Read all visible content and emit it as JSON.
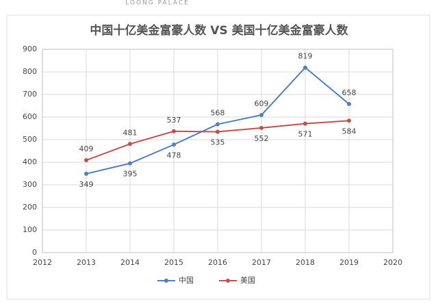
{
  "chart_data": {
    "type": "line",
    "title": "中国十亿美金富豪人数 VS 美国十亿美金富豪人数",
    "annotations": [
      "LOONG  PALACE"
    ],
    "x": [
      2013,
      2014,
      2015,
      2016,
      2017,
      2018,
      2019
    ],
    "series": [
      {
        "name": "中国",
        "color": "#4f7fbc",
        "values": [
          349,
          395,
          478,
          568,
          609,
          819,
          658
        ]
      },
      {
        "name": "美国",
        "color": "#c0504d",
        "values": [
          409,
          481,
          537,
          535,
          552,
          571,
          584
        ]
      }
    ],
    "xlim": [
      2012,
      2020
    ],
    "xticks": [
      2012,
      2013,
      2014,
      2015,
      2016,
      2017,
      2018,
      2019,
      2020
    ],
    "ylim": [
      0,
      900
    ],
    "yticks": [
      0,
      100,
      200,
      300,
      400,
      500,
      600,
      700,
      800,
      900
    ],
    "grid": true,
    "legend": "bottom"
  }
}
